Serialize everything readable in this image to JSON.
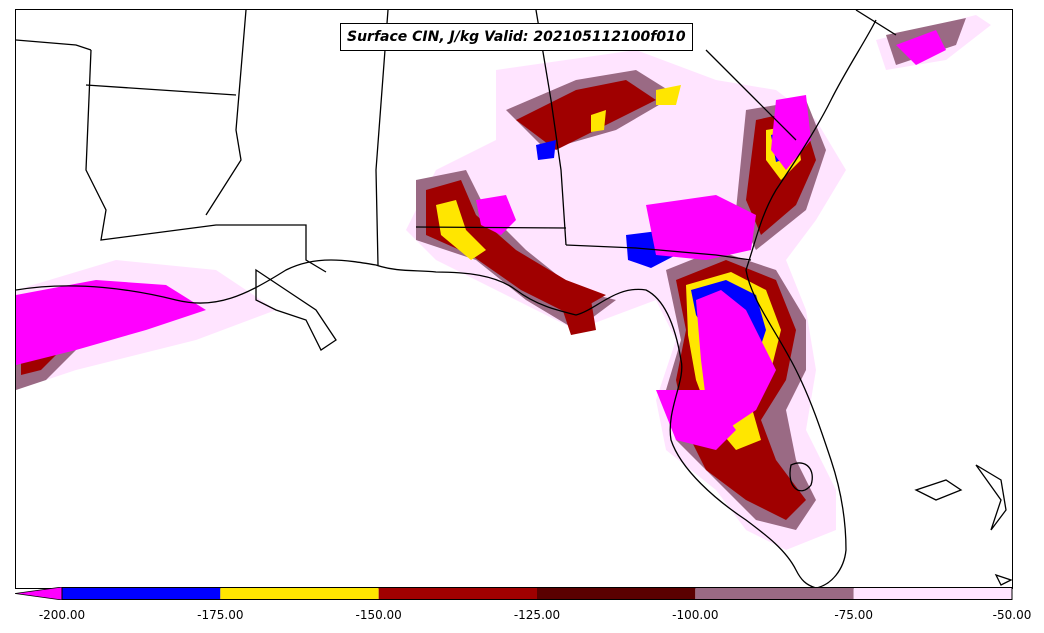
{
  "map": {
    "title": "Surface CIN, J/kg Valid: 202105112100f010"
  },
  "colorbar": {
    "colors": [
      "#ff00ff",
      "#0000ff",
      "#ffe600",
      "#a00000",
      "#5a0000",
      "#9a6a84",
      "#ffe4ff"
    ],
    "segments": [
      {
        "color": "#0000ff",
        "from": -200,
        "to": -175
      },
      {
        "color": "#ffe600",
        "from": -175,
        "to": -150
      },
      {
        "color": "#a00000",
        "from": -150,
        "to": -125
      },
      {
        "color": "#5a0000",
        "from": -125,
        "to": -100
      },
      {
        "color": "#9a6a84",
        "from": -100,
        "to": -75
      },
      {
        "color": "#ffe4ff",
        "from": -75,
        "to": -50
      }
    ],
    "extend_color": "#ff00ff",
    "ticks": [
      "-200.00",
      "-175.00",
      "-150.00",
      "-125.00",
      "-100.00",
      "-75.00",
      "-50.00"
    ]
  }
}
